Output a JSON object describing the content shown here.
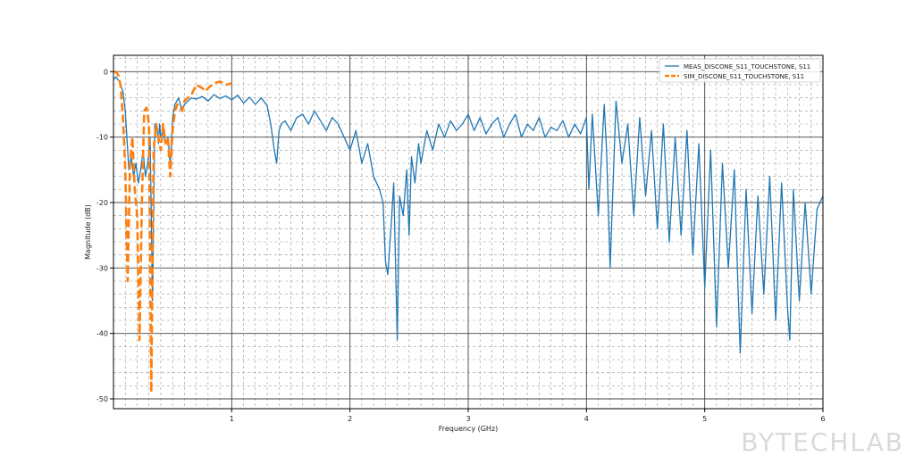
{
  "chart_data": {
    "type": "line",
    "xlabel": "Frequency (GHz)",
    "ylabel": "Magnitude (dB)",
    "xlim": [
      0,
      6
    ],
    "ylim": [
      -51.5,
      2.5
    ],
    "x_ticks": [
      1,
      2,
      3,
      4,
      5,
      6
    ],
    "y_ticks": [
      0,
      -10,
      -20,
      -30,
      -40,
      -50
    ],
    "grid": "major and minor",
    "legend_position": "top-right",
    "series": [
      {
        "name": "MEAS_DISCONE_S11_TOUCHSTONE, S11",
        "color": "#1f77b4",
        "style": "solid",
        "x": [
          0,
          0.02,
          0.05,
          0.08,
          0.1,
          0.12,
          0.13,
          0.15,
          0.17,
          0.19,
          0.21,
          0.23,
          0.25,
          0.27,
          0.29,
          0.31,
          0.33,
          0.35,
          0.37,
          0.38,
          0.39,
          0.4,
          0.42,
          0.44,
          0.46,
          0.48,
          0.5,
          0.52,
          0.55,
          0.58,
          0.6,
          0.63,
          0.66,
          0.7,
          0.75,
          0.8,
          0.85,
          0.9,
          0.95,
          1.0,
          1.05,
          1.1,
          1.15,
          1.2,
          1.25,
          1.3,
          1.33,
          1.36,
          1.38,
          1.4,
          1.42,
          1.45,
          1.5,
          1.55,
          1.6,
          1.65,
          1.7,
          1.75,
          1.8,
          1.85,
          1.9,
          1.95,
          2.0,
          2.05,
          2.1,
          2.15,
          2.2,
          2.25,
          2.28,
          2.3,
          2.32,
          2.35,
          2.37,
          2.4,
          2.42,
          2.45,
          2.48,
          2.5,
          2.52,
          2.55,
          2.58,
          2.6,
          2.65,
          2.7,
          2.75,
          2.8,
          2.85,
          2.9,
          2.95,
          3.0,
          3.05,
          3.1,
          3.15,
          3.2,
          3.25,
          3.3,
          3.35,
          3.4,
          3.45,
          3.5,
          3.55,
          3.6,
          3.65,
          3.7,
          3.75,
          3.8,
          3.85,
          3.9,
          3.95,
          4.0,
          4.02,
          4.05,
          4.1,
          4.15,
          4.17,
          4.2,
          4.25,
          4.3,
          4.35,
          4.4,
          4.45,
          4.5,
          4.55,
          4.6,
          4.65,
          4.7,
          4.75,
          4.8,
          4.85,
          4.9,
          4.95,
          5.0,
          5.05,
          5.1,
          5.15,
          5.2,
          5.25,
          5.28,
          5.3,
          5.35,
          5.4,
          5.45,
          5.5,
          5.55,
          5.6,
          5.65,
          5.7,
          5.72,
          5.75,
          5.8,
          5.85,
          5.9,
          5.95,
          6.0
        ],
        "y": [
          -1.2,
          -0.8,
          -1.5,
          -3,
          -6,
          -12,
          -15,
          -13,
          -16,
          -14,
          -17,
          -15,
          -12,
          -16,
          -14,
          -10,
          -35,
          -8,
          -9,
          -11,
          -8,
          -10,
          -9,
          -11,
          -10,
          -14,
          -7,
          -5,
          -4,
          -6,
          -5,
          -4.5,
          -4,
          -4.2,
          -3.8,
          -4.5,
          -3.5,
          -4.1,
          -3.7,
          -4.3,
          -3.6,
          -4.8,
          -3.9,
          -5,
          -4,
          -5.2,
          -8,
          -12,
          -14,
          -9,
          -8,
          -7.5,
          -9,
          -7,
          -6.5,
          -8,
          -6,
          -7.5,
          -9,
          -7,
          -8,
          -10,
          -12,
          -9,
          -14,
          -11,
          -16,
          -18,
          -20,
          -29,
          -31,
          -23,
          -17,
          -41,
          -19,
          -22,
          -15,
          -25,
          -13,
          -17,
          -11,
          -14,
          -9,
          -12,
          -8,
          -10,
          -7.5,
          -9,
          -8,
          -6.5,
          -9,
          -7,
          -9.5,
          -8,
          -7,
          -10,
          -8,
          -6.5,
          -10,
          -8,
          -9,
          -7,
          -10,
          -8.5,
          -9,
          -7.5,
          -10,
          -8,
          -9.5,
          -7,
          -18,
          -6.5,
          -22,
          -5,
          -12,
          -30,
          -4.5,
          -14,
          -8,
          -22,
          -7,
          -19,
          -9,
          -24,
          -8,
          -26,
          -10,
          -25,
          -9,
          -28,
          -11,
          -33,
          -12,
          -39,
          -14,
          -30,
          -15,
          -32,
          -43,
          -18,
          -37,
          -19,
          -34,
          -16,
          -38,
          -17,
          -36,
          -41,
          -18,
          -35,
          -20,
          -34,
          -21,
          -19
        ]
      },
      {
        "name": "SIM_DISCONE_S11_TOUCHSTONE, S11",
        "color": "#ff7f0e",
        "style": "dashed",
        "x": [
          0,
          0.02,
          0.04,
          0.06,
          0.08,
          0.1,
          0.12,
          0.14,
          0.16,
          0.18,
          0.2,
          0.22,
          0.24,
          0.26,
          0.28,
          0.3,
          0.32,
          0.34,
          0.36,
          0.38,
          0.4,
          0.42,
          0.44,
          0.46,
          0.48,
          0.5,
          0.52,
          0.54,
          0.56,
          0.58,
          0.6,
          0.63,
          0.66,
          0.7,
          0.72,
          0.75,
          0.78,
          0.8,
          0.85,
          0.9,
          0.95,
          1.0
        ],
        "y": [
          0,
          0,
          -0.5,
          -2,
          -7,
          -15,
          -32,
          -14,
          -10,
          -18,
          -22,
          -41,
          -20,
          -6,
          -5.5,
          -8,
          -49,
          -12,
          -8,
          -10,
          -12,
          -8,
          -11,
          -10,
          -16,
          -9,
          -6,
          -5,
          -5.5,
          -6,
          -4.5,
          -4,
          -3.5,
          -2,
          -2.2,
          -2.5,
          -3,
          -2.5,
          -1.8,
          -1.5,
          -2,
          -1.8
        ]
      }
    ]
  },
  "watermark": "BYTECHLAB"
}
